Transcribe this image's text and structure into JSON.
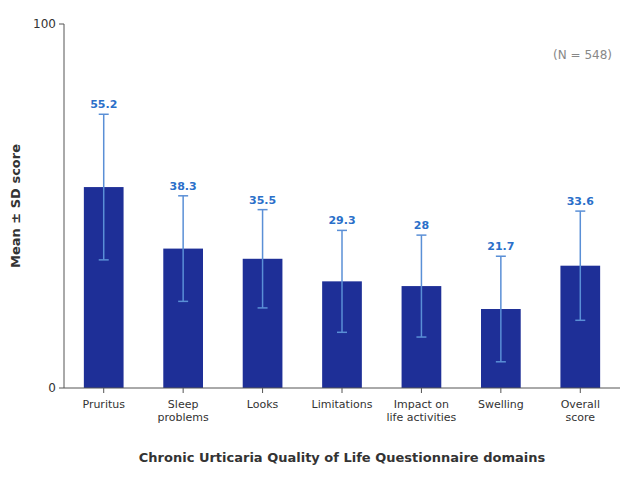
{
  "chart_data": {
    "type": "bar",
    "categories": [
      "Pruritus",
      "Sleep\nproblems",
      "Looks",
      "Limitations",
      "Impact on\nlife activities",
      "Swelling",
      "Overall\nscore"
    ],
    "values": [
      55.2,
      38.3,
      35.5,
      29.3,
      28.0,
      21.7,
      33.6
    ],
    "errors_up": [
      20.0,
      14.5,
      13.5,
      14.0,
      14.0,
      14.5,
      15.0
    ],
    "errors_down": [
      20.0,
      14.5,
      13.5,
      14.0,
      14.0,
      14.5,
      15.0
    ],
    "color": "#1e2f97",
    "xlabel": "Chronic Urticaria Quality of Life Questionnaire domains",
    "ylabel": "Mean ± SD score",
    "annotation": "(N = 548)",
    "ylim": [
      0,
      100
    ],
    "yticks": [
      0,
      100
    ],
    "grid": false,
    "data_labels": true
  }
}
